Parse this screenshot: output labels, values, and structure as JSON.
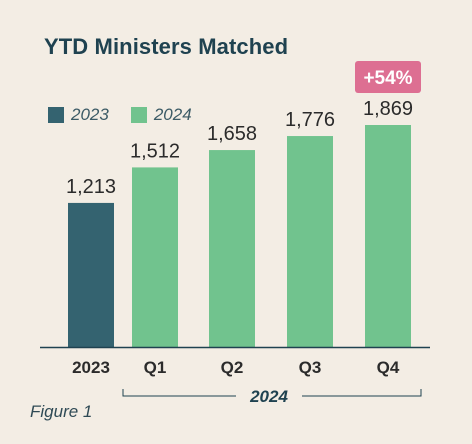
{
  "title": "YTD Ministers Matched",
  "figure_label": "Figure 1",
  "colors": {
    "series_2023": "#346370",
    "series_2024": "#71c38e",
    "badge": "#dd6f92",
    "axis": "#1f4250",
    "text": "#2b2b2b"
  },
  "chart_data": {
    "type": "bar",
    "title": "YTD Ministers Matched",
    "categories": [
      "2023",
      "Q1",
      "Q2",
      "Q3",
      "Q4"
    ],
    "values": [
      1213,
      1512,
      1658,
      1776,
      1869
    ],
    "bar_series": [
      "2023",
      "2024",
      "2024",
      "2024",
      "2024"
    ],
    "data_labels": [
      "1,213",
      "1,512",
      "1,658",
      "1,776",
      "1,869"
    ],
    "legend": [
      {
        "name": "2023",
        "color": "#346370"
      },
      {
        "name": "2024",
        "color": "#71c38e"
      }
    ],
    "group_label": "2024",
    "annotation": {
      "text": "+54%",
      "category": "Q4"
    },
    "ylim": [
      0,
      1869
    ],
    "legend_position": "top-left",
    "grid": false
  }
}
